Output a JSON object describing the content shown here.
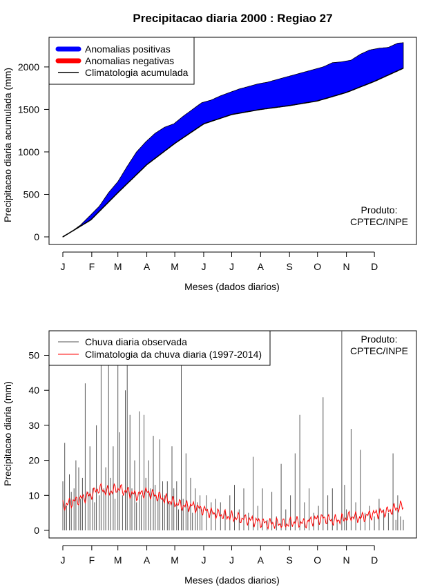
{
  "title": "Precipitacao diaria 2000 : Regiao 27",
  "chart_data": [
    {
      "type": "area",
      "ylabel": "Precipitacao diaria acumulada (mm)",
      "xlabel": "Meses (dados diarios)",
      "month_ticks": [
        "J",
        "F",
        "M",
        "A",
        "M",
        "J",
        "J",
        "A",
        "S",
        "O",
        "N",
        "D"
      ],
      "month_start_days": [
        1,
        32,
        60,
        91,
        121,
        152,
        182,
        213,
        244,
        274,
        305,
        335
      ],
      "xlim": [
        1,
        366
      ],
      "ylim": [
        0,
        2300
      ],
      "yticks": [
        0,
        500,
        1000,
        1500,
        2000
      ],
      "legend": [
        "Anomalias positivas",
        "Anomalias negativas",
        "Climatologia acumulada"
      ],
      "legend_colors": [
        "#0000ff",
        "#ff0000",
        "#000000"
      ],
      "note": [
        "Produto:",
        "CPTEC/INPE"
      ],
      "observed_cumulative": {
        "days": [
          1,
          10,
          20,
          31,
          40,
          50,
          60,
          70,
          80,
          90,
          100,
          110,
          120,
          130,
          140,
          150,
          160,
          170,
          180,
          190,
          200,
          210,
          220,
          230,
          240,
          250,
          260,
          270,
          280,
          290,
          300,
          310,
          320,
          330,
          340,
          350,
          360,
          366
        ],
        "values": [
          5,
          60,
          140,
          260,
          360,
          520,
          650,
          830,
          1000,
          1120,
          1220,
          1290,
          1330,
          1420,
          1500,
          1580,
          1610,
          1660,
          1700,
          1740,
          1770,
          1800,
          1820,
          1850,
          1880,
          1910,
          1940,
          1970,
          2000,
          2050,
          2060,
          2080,
          2150,
          2200,
          2220,
          2230,
          2280,
          2285
        ]
      },
      "climatology_cumulative": {
        "days": [
          1,
          31,
          60,
          91,
          121,
          152,
          182,
          213,
          244,
          274,
          305,
          335,
          366
        ],
        "values": [
          0,
          200,
          520,
          850,
          1100,
          1330,
          1440,
          1500,
          1545,
          1600,
          1700,
          1830,
          1985
        ]
      }
    },
    {
      "type": "bar",
      "ylabel": "Precipitacao diaria (mm)",
      "xlabel": "Meses (dados diarios)",
      "month_ticks": [
        "J",
        "F",
        "M",
        "A",
        "M",
        "J",
        "J",
        "A",
        "S",
        "O",
        "N",
        "D"
      ],
      "month_start_days": [
        1,
        32,
        60,
        91,
        121,
        152,
        182,
        213,
        244,
        274,
        305,
        335
      ],
      "xlim": [
        1,
        366
      ],
      "ylim": [
        0,
        57
      ],
      "yticks": [
        0,
        10,
        20,
        30,
        40,
        50
      ],
      "legend": [
        "Chuva diaria observada",
        "Climatologia da chuva diaria (1997-2014)"
      ],
      "legend_colors": [
        "#555555",
        "#ff0000"
      ],
      "note": [
        "Produto:",
        "CPTEC/INPE"
      ],
      "observed_daily": {
        "days": [
          1,
          3,
          5,
          8,
          10,
          13,
          15,
          18,
          20,
          22,
          25,
          28,
          30,
          33,
          35,
          37,
          40,
          42,
          45,
          47,
          50,
          52,
          55,
          57,
          60,
          62,
          65,
          68,
          70,
          73,
          75,
          78,
          80,
          83,
          85,
          88,
          90,
          93,
          95,
          98,
          100,
          103,
          105,
          108,
          110,
          113,
          115,
          118,
          120,
          123,
          125,
          128,
          130,
          133,
          135,
          138,
          140,
          143,
          145,
          148,
          150,
          155,
          160,
          165,
          170,
          175,
          180,
          185,
          190,
          195,
          200,
          205,
          210,
          215,
          220,
          225,
          230,
          235,
          240,
          245,
          250,
          255,
          260,
          265,
          270,
          275,
          280,
          285,
          290,
          295,
          300,
          303,
          305,
          310,
          315,
          320,
          325,
          330,
          335,
          340,
          345,
          350,
          355,
          358,
          360,
          363,
          366
        ],
        "values": [
          14,
          25,
          7,
          16,
          11,
          12,
          20,
          18,
          9,
          15,
          42,
          11,
          24,
          12,
          8,
          30,
          10,
          55,
          12,
          18,
          65,
          15,
          24,
          9,
          55,
          28,
          10,
          40,
          70,
          33,
          12,
          20,
          8,
          34,
          10,
          33,
          15,
          20,
          12,
          27,
          13,
          9,
          26,
          14,
          10,
          14,
          8,
          24,
          12,
          14,
          6,
          48,
          9,
          22,
          7,
          15,
          5,
          12,
          8,
          10,
          6,
          10,
          8,
          9,
          8,
          6,
          10,
          13,
          6,
          12,
          5,
          21,
          7,
          12,
          3,
          11,
          4,
          19,
          6,
          10,
          22,
          33,
          8,
          12,
          5,
          7,
          38,
          10,
          12,
          3,
          57,
          13,
          6,
          29,
          8,
          23,
          5,
          7,
          4,
          9,
          6,
          5,
          22,
          3,
          10,
          4,
          3
        ]
      },
      "climatology_daily": {
        "days": [
          1,
          10,
          20,
          30,
          40,
          50,
          60,
          70,
          80,
          90,
          100,
          110,
          120,
          130,
          140,
          150,
          160,
          170,
          180,
          190,
          200,
          210,
          220,
          230,
          240,
          250,
          260,
          270,
          280,
          290,
          300,
          310,
          320,
          330,
          340,
          350,
          360,
          366
        ],
        "values": [
          7,
          8,
          9,
          10,
          12,
          11,
          12,
          11,
          10,
          11,
          10,
          9,
          8,
          7,
          7,
          6,
          5,
          4.5,
          4,
          3.5,
          3,
          2.5,
          2,
          2,
          1.8,
          2.5,
          2,
          3,
          3.5,
          2.8,
          3.2,
          4,
          3.5,
          4.5,
          5,
          5.5,
          6.5,
          7
        ]
      }
    }
  ]
}
